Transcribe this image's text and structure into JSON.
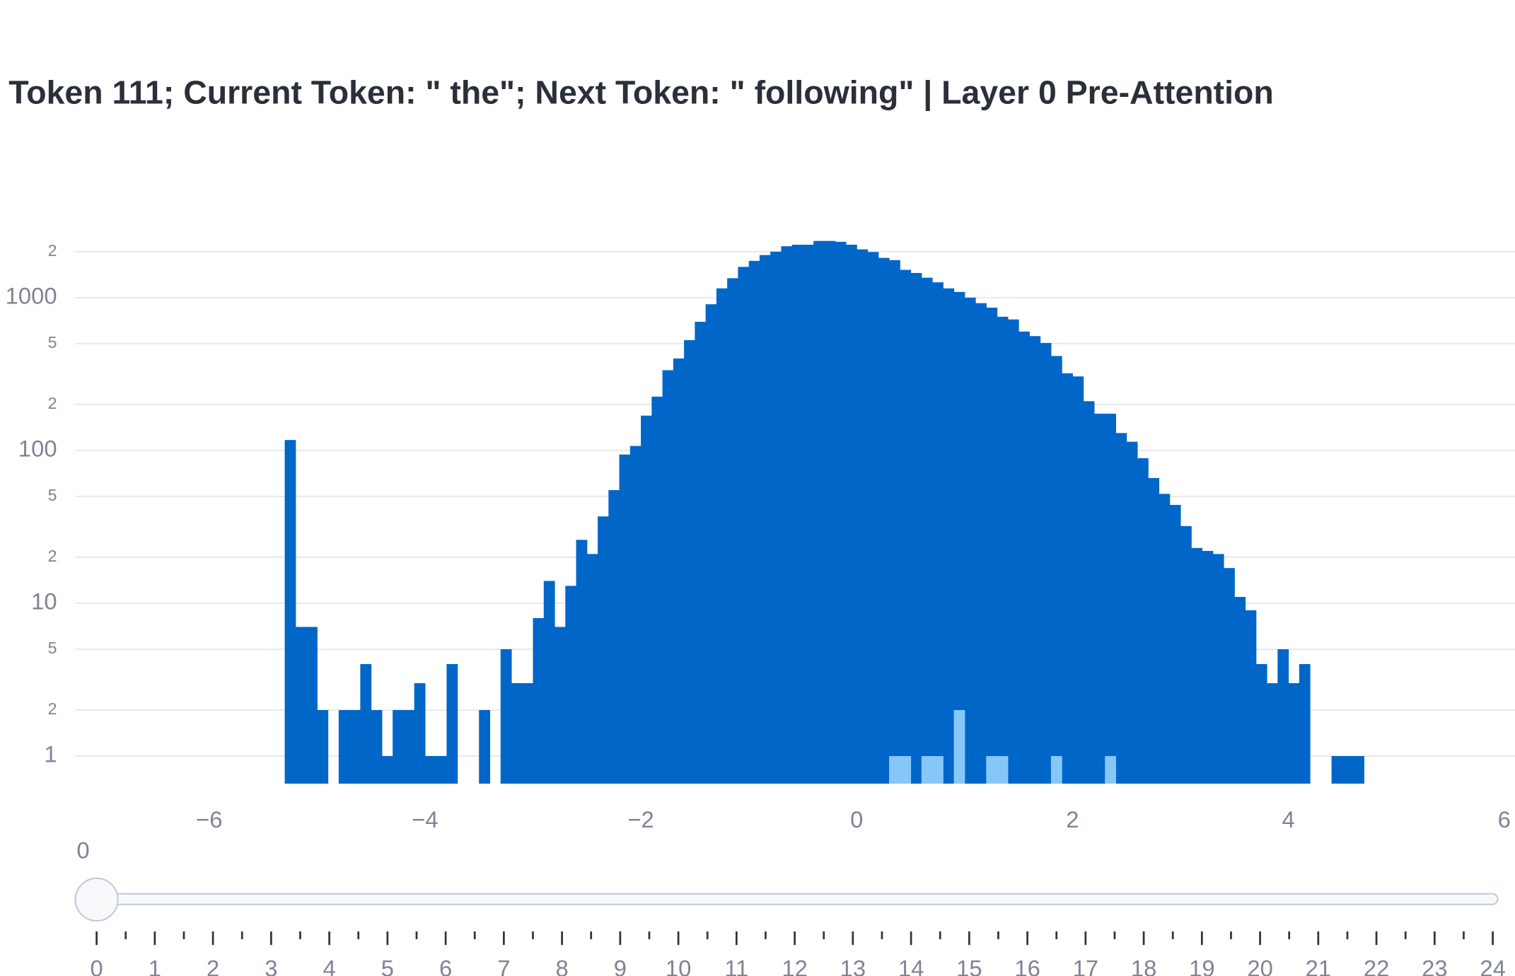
{
  "chart_data": {
    "type": "histogram",
    "title": "Token 111; Current Token: \" the\"; Next Token: \" following\" | Layer 0 Pre-Attention",
    "log_y": true,
    "grid": true,
    "bins": [
      -5.3,
      -5.2,
      -5.1,
      -5,
      -4.9,
      -4.8,
      -4.7,
      -4.6,
      -4.5,
      -4.4,
      -4.3,
      -4.2,
      -4.1,
      -4,
      -3.9,
      -3.8,
      -3.7,
      -3.6,
      -3.5,
      -3.4,
      -3.3,
      -3.2,
      -3.1,
      -3,
      -2.9,
      -2.8,
      -2.7,
      -2.6,
      -2.5,
      -2.4,
      -2.3,
      -2.2,
      -2.1,
      -2,
      -1.9,
      -1.8,
      -1.7,
      -1.6,
      -1.5,
      -1.4,
      -1.3,
      -1.2,
      -1.1,
      -1,
      -0.9,
      -0.8,
      -0.7,
      -0.6,
      -0.5,
      -0.4,
      -0.3,
      -0.2,
      -0.1,
      0,
      0.1,
      0.2,
      0.3,
      0.4,
      0.5,
      0.6,
      0.7,
      0.8,
      0.9,
      1,
      1.1,
      1.2,
      1.3,
      1.4,
      1.5,
      1.6,
      1.7,
      1.8,
      1.9,
      2,
      2.1,
      2.2,
      2.3,
      2.4,
      2.5,
      2.6,
      2.7,
      2.8,
      2.9,
      3,
      3.1,
      3.2,
      3.3,
      3.4,
      3.5,
      3.6,
      3.7,
      3.8,
      3.9,
      4,
      4.1,
      4.2,
      4.3,
      4.4,
      4.5,
      4.6,
      4.7
    ],
    "series": [
      {
        "color": "#0066c8",
        "values": [
          117,
          7,
          7,
          2,
          0,
          2,
          2,
          4,
          2,
          1,
          2,
          2,
          3,
          1,
          1,
          4,
          0,
          0,
          2,
          0,
          5,
          3,
          3,
          8,
          14,
          7,
          13,
          26,
          21,
          37,
          55,
          94,
          107,
          169,
          225,
          335,
          400,
          527,
          695,
          905,
          1150,
          1340,
          1590,
          1740,
          1900,
          2000,
          2170,
          2220,
          2220,
          2350,
          2350,
          2320,
          2220,
          2070,
          1990,
          1820,
          1760,
          1520,
          1450,
          1350,
          1260,
          1150,
          1090,
          1000,
          920,
          860,
          750,
          720,
          600,
          560,
          505,
          415,
          320,
          305,
          210,
          174,
          174,
          130,
          114,
          89,
          66,
          52,
          44,
          32,
          23,
          22,
          21,
          17,
          11,
          9,
          4,
          3,
          5,
          3,
          4,
          0,
          0,
          1,
          1,
          1
        ]
      },
      {
        "color": "#87c7f8",
        "values": [
          0,
          0,
          0,
          0,
          0,
          0,
          0,
          0,
          0,
          0,
          0,
          0,
          0,
          0,
          0,
          0,
          0,
          0,
          0,
          0,
          0,
          0,
          0,
          0,
          0,
          0,
          0,
          0,
          0,
          0,
          0,
          0,
          0,
          0,
          0,
          0,
          0,
          0,
          0,
          0,
          0,
          0,
          0,
          0,
          0,
          0,
          0,
          0,
          0,
          0,
          0,
          0,
          0,
          0,
          0,
          0,
          1,
          1,
          0,
          1,
          1,
          0,
          2,
          0,
          0,
          1,
          1,
          0,
          0,
          0,
          0,
          1,
          0,
          0,
          0,
          0,
          1,
          0,
          0,
          0,
          0,
          0,
          0,
          0,
          0,
          0,
          0,
          0,
          0,
          0,
          0,
          0,
          0,
          0,
          0,
          0,
          0,
          0,
          0,
          0
        ]
      }
    ],
    "xlim": [
      -7.24,
      6.1
    ],
    "xticks": [
      {
        "value": -6,
        "label": "−6"
      },
      {
        "value": -4,
        "label": "−4"
      },
      {
        "value": -2,
        "label": "−2"
      },
      0,
      2,
      4,
      6
    ],
    "ylim": [
      0.66,
      2690
    ],
    "yticks": [
      1,
      {
        "value": 2,
        "label": "2"
      },
      {
        "value": 5,
        "label": "5"
      },
      10,
      {
        "value": 20,
        "label": "2"
      },
      {
        "value": 50,
        "label": "5"
      },
      100,
      {
        "value": 200,
        "label": "2"
      },
      {
        "value": 500,
        "label": "5"
      },
      1000,
      {
        "value": 2000,
        "label": "2"
      }
    ]
  },
  "slider": {
    "current_label": "0",
    "steps": [
      "0",
      "1",
      "2",
      "3",
      "4",
      "5",
      "6",
      "7",
      "8",
      "9",
      "10",
      "11",
      "12",
      "13",
      "14",
      "15",
      "16",
      "17",
      "18",
      "19",
      "20",
      "21",
      "22",
      "23",
      "24"
    ]
  }
}
